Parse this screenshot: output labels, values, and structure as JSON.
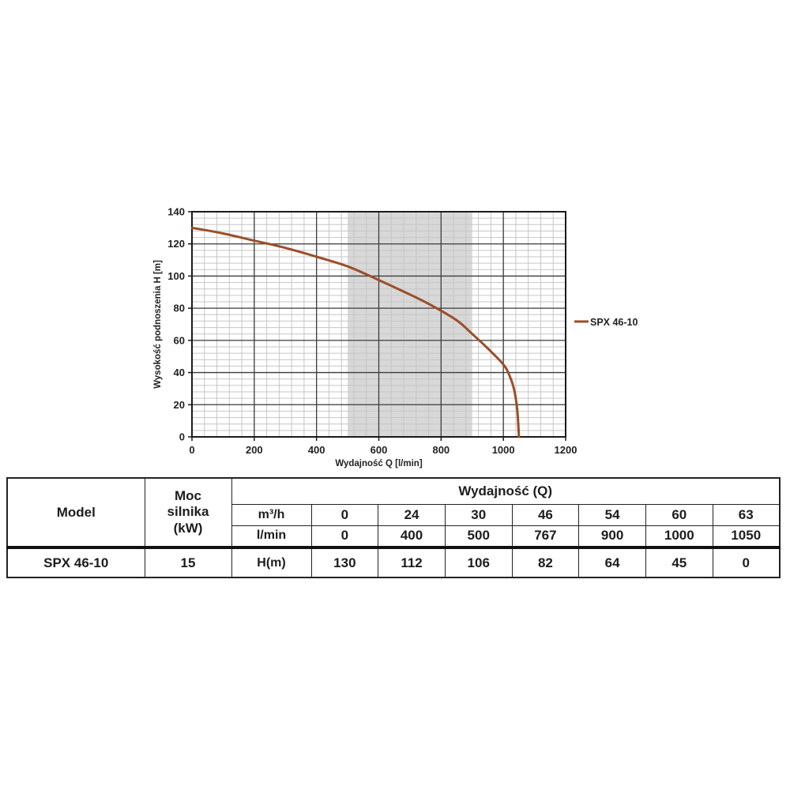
{
  "chart_data": {
    "type": "line",
    "title": "",
    "xlabel": "Wydajność Q [l/min]",
    "ylabel": "Wysokość podnoszenia H [m]",
    "xlim": [
      0,
      1200
    ],
    "ylim": [
      0,
      140
    ],
    "x_ticks": [
      0,
      200,
      400,
      600,
      800,
      1000,
      1200
    ],
    "y_ticks": [
      0,
      20,
      40,
      60,
      80,
      100,
      120,
      140
    ],
    "x_minor_step": 40,
    "y_minor_step": 4,
    "grid": "on",
    "grid_minor_color": "#c6c6c6",
    "grid_major_color": "#3d3d3d",
    "axis_color": "#1a1a1a",
    "band": {
      "from": 500,
      "to": 900,
      "color": "#d8d8d8"
    },
    "legend": {
      "position": "right",
      "entries": [
        {
          "label": "SPX 46-10",
          "color": "#9a4f28"
        }
      ]
    },
    "series": [
      {
        "name": "SPX 46-10",
        "color": "#9a4f28",
        "points": [
          [
            0,
            130
          ],
          [
            100,
            126.5
          ],
          [
            200,
            122
          ],
          [
            300,
            117.5
          ],
          [
            400,
            112
          ],
          [
            500,
            106
          ],
          [
            600,
            97.5
          ],
          [
            700,
            88.5
          ],
          [
            767,
            82
          ],
          [
            850,
            72.5
          ],
          [
            900,
            64
          ],
          [
            950,
            55
          ],
          [
            1000,
            45
          ],
          [
            1020,
            38
          ],
          [
            1035,
            29
          ],
          [
            1045,
            16
          ],
          [
            1050,
            0
          ]
        ]
      }
    ]
  },
  "table": {
    "model_header": "Model",
    "power_header_lines": [
      "Moc",
      "silnika",
      "(kW)"
    ],
    "performance_header": "Wydajność (Q)",
    "m3h_label": "m³/h",
    "m3h_values": [
      "0",
      "24",
      "30",
      "46",
      "54",
      "60",
      "63"
    ],
    "lmin_label": "l/min",
    "lmin_values": [
      "0",
      "400",
      "500",
      "767",
      "900",
      "1000",
      "1050"
    ],
    "h_label": "H(m)",
    "h_values": [
      "130",
      "112",
      "106",
      "82",
      "64",
      "45",
      "0"
    ],
    "model_value": "SPX 46-10",
    "power_value": "15"
  }
}
